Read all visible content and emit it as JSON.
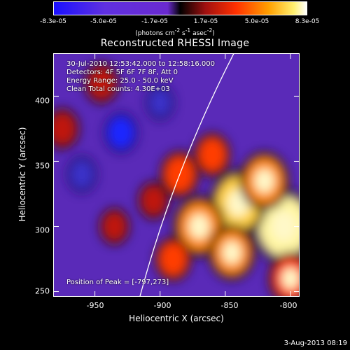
{
  "colorbar": {
    "ticks": [
      "-8.3e-05",
      "-5.0e-05",
      "-1.7e-05",
      "1.7e-05",
      "5.0e-05",
      "8.3e-05"
    ],
    "units_prefix": "(photons cm",
    "units_exp1": "-2",
    "units_mid": " s",
    "units_exp2": "-1",
    "units_mid2": " asec",
    "units_exp3": "-2",
    "units_suffix": ")"
  },
  "chart_data": {
    "type": "heatmap",
    "title": "Reconstructed RHESSI Image",
    "xlabel": "Heliocentric X (arcsec)",
    "ylabel": "Heliocentric Y (arcsec)",
    "xlim": [
      -982,
      -793
    ],
    "ylim": [
      246,
      433
    ],
    "x_ticks": [
      "-950",
      "-900",
      "-850",
      "-800"
    ],
    "y_ticks": [
      "400",
      "350",
      "300",
      "250"
    ],
    "zlim": [
      -8.3e-05,
      8.3e-05
    ],
    "peak_x": -797,
    "peak_y": 273,
    "sources": [
      {
        "x": -805,
        "y": 300,
        "flux": 8.3e-05
      },
      {
        "x": -840,
        "y": 318,
        "flux": 7e-05
      },
      {
        "x": -870,
        "y": 300,
        "flux": 6e-05
      },
      {
        "x": -820,
        "y": 335,
        "flux": 5.5e-05
      },
      {
        "x": -845,
        "y": 280,
        "flux": 5e-05
      },
      {
        "x": -885,
        "y": 340,
        "flux": 3.5e-05
      },
      {
        "x": -800,
        "y": 260,
        "flux": 4.5e-05
      },
      {
        "x": -860,
        "y": 355,
        "flux": 3e-05
      },
      {
        "x": -890,
        "y": 275,
        "flux": 3e-05
      },
      {
        "x": -945,
        "y": 410,
        "flux": 2.5e-05
      },
      {
        "x": -975,
        "y": 375,
        "flux": 2.5e-05
      },
      {
        "x": -905,
        "y": 320,
        "flux": 2e-05
      },
      {
        "x": -935,
        "y": 300,
        "flux": 1.8e-05
      },
      {
        "x": -930,
        "y": 372,
        "flux": -2.5e-05
      },
      {
        "x": -900,
        "y": 395,
        "flux": -1.5e-05
      },
      {
        "x": -960,
        "y": 340,
        "flux": -1.8e-05
      }
    ]
  },
  "info": {
    "time": "30-Jul-2010 12:53:42.000 to 12:58:16.000",
    "detectors": "Detectors: 4F 5F 6F 7F 8F, Att 0",
    "energy": "Energy Range: 25.0 - 50.0 keV",
    "clean": "Clean    Total counts: 4.30E+03",
    "peak": "Position of Peak = [-797,273]"
  },
  "timestamp": "3-Aug-2013 08:19",
  "colors": {
    "limb": "#ffffff",
    "frame": "#ffffff"
  }
}
